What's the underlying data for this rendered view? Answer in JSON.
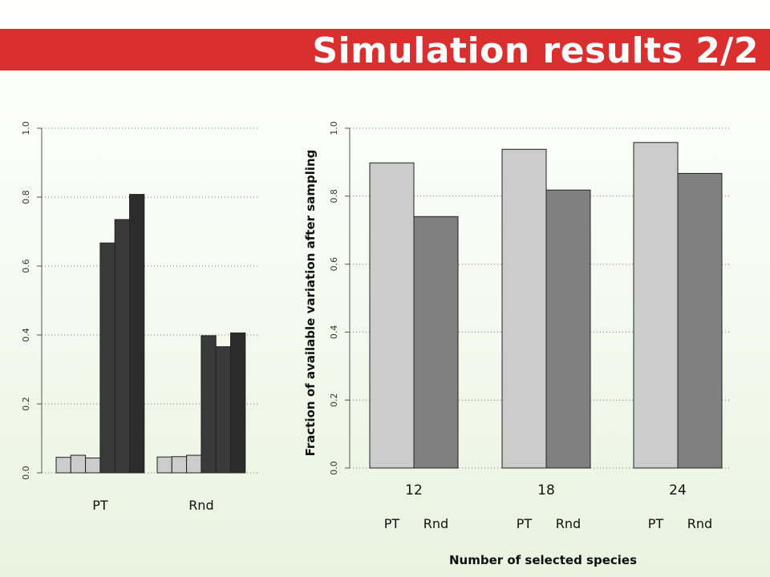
{
  "title": "Simulation results 2/2",
  "chart_data": [
    {
      "type": "bar",
      "title": "",
      "xlabel": "",
      "ylabel": "",
      "ylim": [
        0,
        1
      ],
      "yticks": [
        "0.0",
        "0.2",
        "0.4",
        "0.6",
        "0.8",
        "1.0"
      ],
      "grid": "horizontal dotted",
      "groups": [
        {
          "label": "PT",
          "values": [
            0.045,
            0.051,
            0.043,
            0.667,
            0.735,
            0.808
          ]
        },
        {
          "label": "Rnd",
          "values": [
            0.046,
            0.047,
            0.051,
            0.398,
            0.366,
            0.406
          ]
        }
      ],
      "bar_colors": [
        "#cccccc",
        "#cccccc",
        "#cccccc",
        "#3a3a3a",
        "#3a3a3a",
        "#2c2c2c"
      ]
    },
    {
      "type": "bar",
      "title": "",
      "xlabel": "Number of selected species",
      "ylabel": "Fraction of available variation after sampling",
      "ylim": [
        0,
        1
      ],
      "yticks": [
        "0.0",
        "0.2",
        "0.4",
        "0.6",
        "0.8",
        "1.0"
      ],
      "grid": "horizontal dotted",
      "categories": [
        "12",
        "18",
        "24"
      ],
      "series": [
        {
          "name": "PT",
          "values": [
            0.898,
            0.938,
            0.958
          ],
          "color": "#cccccc"
        },
        {
          "name": "Rnd",
          "values": [
            0.74,
            0.818,
            0.867
          ],
          "color": "#808080"
        }
      ]
    }
  ]
}
